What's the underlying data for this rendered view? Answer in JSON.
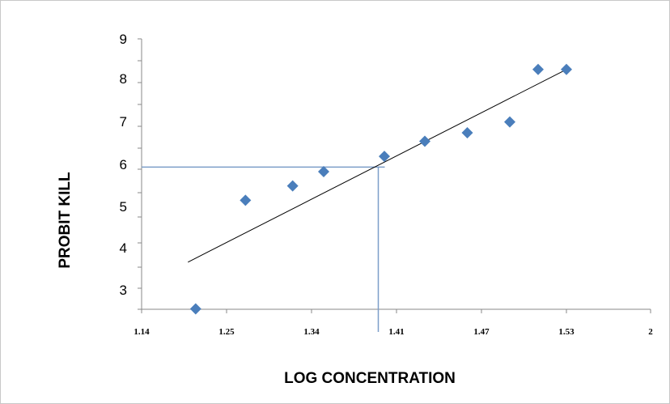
{
  "chart_data": {
    "type": "scatter",
    "title": "",
    "xlabel": "LOG CONCENTRATION",
    "ylabel": "PROBIT KILL",
    "x_tick_labels": [
      "1.14",
      "1.25",
      "1.34",
      "1.41",
      "1.47",
      "1.53",
      "2"
    ],
    "y_tick_labels": [
      "3",
      "4",
      "5",
      "6",
      "7",
      "8",
      "9"
    ],
    "y_tick_values": [
      2.8,
      3.8,
      4.75,
      5.75,
      6.5,
      7.8,
      9.0
    ],
    "ylim": [
      2.5,
      9.0
    ],
    "grid": false,
    "legend": "none",
    "colors": {
      "points": "#4a7ebb",
      "trendline": "#000000",
      "guide_lines": "#7c9ec9",
      "axes": "#888888"
    },
    "series": [
      {
        "marker": "diamond",
        "x": [
          1.21,
          1.27,
          1.32,
          1.35,
          1.4,
          1.43,
          1.46,
          1.49,
          1.51,
          1.53
        ],
        "y": [
          2.51,
          4.85,
          5.15,
          5.45,
          5.8,
          6.15,
          6.35,
          6.6,
          7.95,
          7.95
        ]
      }
    ],
    "trendline": {
      "x": [
        1.2,
        1.53
      ],
      "y": [
        3.6,
        7.95
      ]
    },
    "guide": {
      "y_value": 5.55,
      "x_value": 1.395
    }
  }
}
